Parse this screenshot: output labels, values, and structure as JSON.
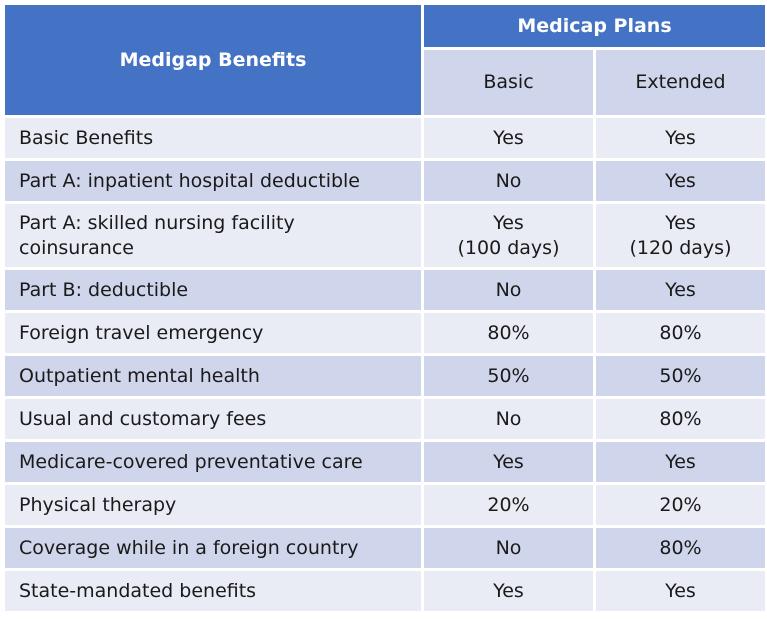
{
  "header": {
    "benefits_title": "Medigap Benefits",
    "plans_title": "Medicap Plans",
    "plan_basic": "Basic",
    "plan_extended": "Extended"
  },
  "rows": [
    {
      "benefit": "Basic Benefits",
      "basic": "Yes",
      "extended": "Yes"
    },
    {
      "benefit": "Part A: inpatient hospital deductible",
      "basic": "No",
      "extended": "Yes"
    },
    {
      "benefit_line1": "Part A: skilled nursing facility",
      "benefit_line2": "coinsurance",
      "basic_line1": "Yes",
      "basic_line2": "(100 days)",
      "extended_line1": "Yes",
      "extended_line2": "(120 days)"
    },
    {
      "benefit": "Part B: deductible",
      "basic": "No",
      "extended": "Yes"
    },
    {
      "benefit": "Foreign travel emergency",
      "basic": "80%",
      "extended": "80%"
    },
    {
      "benefit": "Outpatient mental health",
      "basic": "50%",
      "extended": "50%"
    },
    {
      "benefit": "Usual and customary fees",
      "basic": "No",
      "extended": "80%"
    },
    {
      "benefit": "Medicare-covered preventative care",
      "basic": "Yes",
      "extended": "Yes"
    },
    {
      "benefit": "Physical therapy",
      "basic": "20%",
      "extended": "20%"
    },
    {
      "benefit": "Coverage while in a foreign country",
      "basic": "No",
      "extended": "80%"
    },
    {
      "benefit": "State-mandated benefits",
      "basic": "Yes",
      "extended": "Yes"
    }
  ],
  "colors": {
    "header_blue": "#4472c4",
    "row_light": "#e9ebf5",
    "row_dark": "#cfd5ea"
  }
}
